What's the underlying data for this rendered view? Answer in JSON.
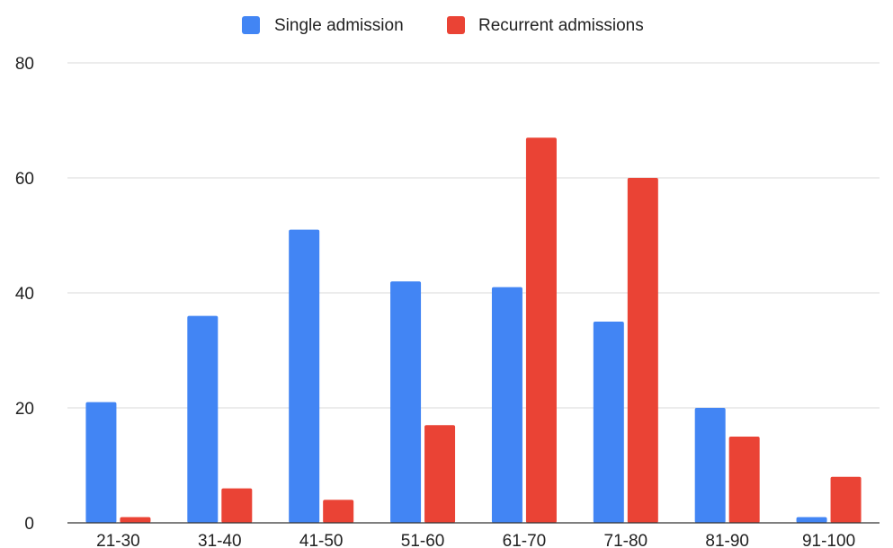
{
  "chart_data": {
    "type": "bar",
    "categories": [
      "21-30",
      "31-40",
      "41-50",
      "51-60",
      "61-70",
      "71-80",
      "81-90",
      "91-100"
    ],
    "series": [
      {
        "name": "Single admission",
        "color": "#4285f4",
        "values": [
          21,
          36,
          51,
          42,
          41,
          35,
          20,
          1
        ]
      },
      {
        "name": "Recurrent admissions",
        "color": "#ea4335",
        "values": [
          1,
          6,
          4,
          17,
          67,
          60,
          15,
          8
        ]
      }
    ],
    "ylim": [
      0,
      80
    ],
    "yticks": [
      "0",
      "20",
      "40",
      "60",
      "80"
    ],
    "grid": true,
    "legend_position": "top-center",
    "title": "",
    "xlabel": "",
    "ylabel": ""
  }
}
